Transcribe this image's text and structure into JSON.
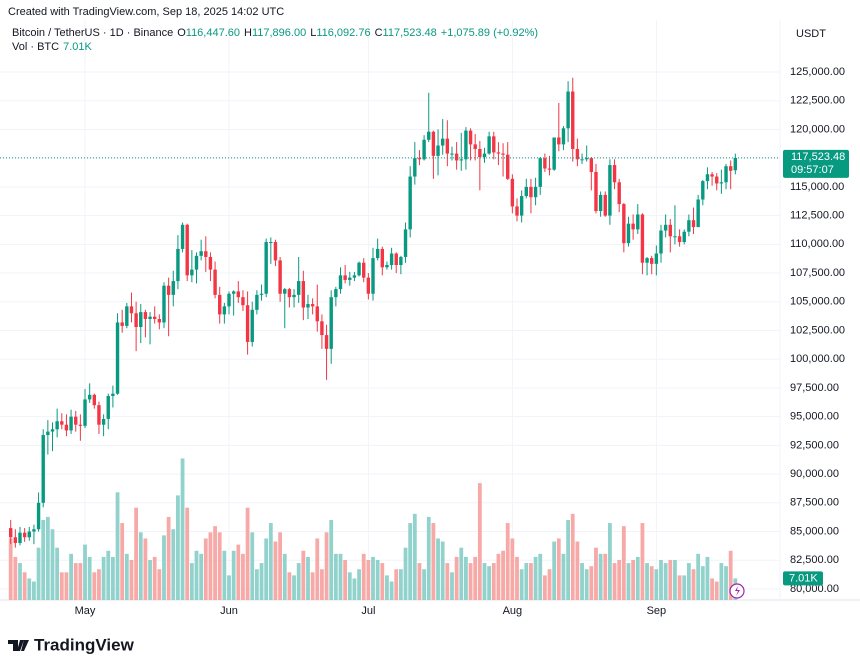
{
  "chart_data": {
    "type": "candlestick",
    "created": "Created with TradingView.com, Sep 18, 2025 14:02 UTC",
    "symbol": "Bitcoin / TetherUS · 1D · Binance",
    "ohlc_prefixes": [
      "O",
      "H",
      "L",
      "C"
    ],
    "ohlc_last_labels": [
      "116,447.60",
      "117,896.00",
      "116,092.76",
      "117,523.48"
    ],
    "change_label": "+1,075.89 (+0.92%)",
    "volume_title": "Vol · BTC",
    "volume_last_label": "7.01K",
    "currency": "USDT",
    "countdown": "09:57:07",
    "brand": "TradingView",
    "up_color": "#089981",
    "down_color": "#f23645",
    "volume_up_color": "#92d2cc",
    "volume_down_color": "#f7a9a7",
    "grid": true,
    "ylim": [
      79040,
      126480
    ],
    "volume_ylim": [
      0,
      52000
    ],
    "yticks": [
      {
        "value": 80000,
        "label": "80,000.00"
      },
      {
        "value": 82500,
        "label": "82,500.00"
      },
      {
        "value": 85000,
        "label": "85,000.00"
      },
      {
        "value": 87500,
        "label": "87,500.00"
      },
      {
        "value": 90000,
        "label": "90,000.00"
      },
      {
        "value": 92500,
        "label": "92,500.00"
      },
      {
        "value": 95000,
        "label": "95,000.00"
      },
      {
        "value": 97500,
        "label": "97,500.00"
      },
      {
        "value": 100000,
        "label": "100,000.00"
      },
      {
        "value": 102500,
        "label": "102,500.00"
      },
      {
        "value": 105000,
        "label": "105,000.00"
      },
      {
        "value": 107500,
        "label": "107,500.00"
      },
      {
        "value": 110000,
        "label": "110,000.00"
      },
      {
        "value": 112500,
        "label": "112,500.00"
      },
      {
        "value": 115000,
        "label": "115,000.00"
      },
      {
        "value": 117500,
        "label": "117,500.00"
      },
      {
        "value": 120000,
        "label": "120,000.00"
      },
      {
        "value": 122500,
        "label": "122,500.00"
      },
      {
        "value": 125000,
        "label": "125,000.00"
      }
    ],
    "categories": [
      null,
      null,
      null,
      null,
      null,
      null,
      null,
      null,
      null,
      null,
      null,
      null,
      null,
      null,
      null,
      null,
      "May",
      null,
      null,
      null,
      null,
      null,
      null,
      null,
      null,
      null,
      null,
      null,
      null,
      null,
      null,
      null,
      null,
      null,
      null,
      null,
      null,
      null,
      null,
      null,
      null,
      null,
      null,
      null,
      null,
      null,
      null,
      "Jun",
      null,
      null,
      null,
      null,
      null,
      null,
      null,
      null,
      null,
      null,
      null,
      null,
      null,
      null,
      null,
      null,
      null,
      null,
      null,
      null,
      null,
      null,
      null,
      null,
      null,
      null,
      null,
      null,
      null,
      "Jul",
      null,
      null,
      null,
      null,
      null,
      null,
      null,
      null,
      null,
      null,
      null,
      null,
      null,
      null,
      null,
      null,
      null,
      null,
      null,
      null,
      null,
      null,
      null,
      null,
      null,
      null,
      null,
      null,
      null,
      null,
      "Aug",
      null,
      null,
      null,
      null,
      null,
      null,
      null,
      null,
      null,
      null,
      null,
      null,
      null,
      null,
      null,
      null,
      null,
      null,
      null,
      null,
      null,
      null,
      null,
      null,
      null,
      null,
      null,
      null,
      null,
      null,
      "Sep",
      null,
      null,
      null,
      null,
      null,
      null,
      null,
      null,
      null,
      null,
      null,
      null,
      null,
      null,
      null,
      null,
      null
    ],
    "ohlc": [
      [
        85300,
        86000,
        83900,
        84500
      ],
      [
        84500,
        85200,
        83600,
        84000
      ],
      [
        84000,
        85400,
        83800,
        84900
      ],
      [
        84900,
        85300,
        84100,
        84500
      ],
      [
        84500,
        85400,
        84200,
        85000
      ],
      [
        85000,
        85600,
        83900,
        85200
      ],
      [
        85200,
        88400,
        85000,
        87500
      ],
      [
        87500,
        93900,
        87100,
        93400
      ],
      [
        93400,
        94700,
        91700,
        93700
      ],
      [
        93700,
        94500,
        92000,
        93900
      ],
      [
        93900,
        95700,
        93200,
        94600
      ],
      [
        94600,
        95300,
        93900,
        94300
      ],
      [
        94300,
        95200,
        93300,
        93800
      ],
      [
        93800,
        95600,
        93500,
        95000
      ],
      [
        95000,
        95500,
        93700,
        94300
      ],
      [
        94300,
        95200,
        92900,
        94200
      ],
      [
        94200,
        97400,
        94000,
        96500
      ],
      [
        96500,
        97900,
        96200,
        96900
      ],
      [
        96900,
        97000,
        95700,
        96000
      ],
      [
        96000,
        96300,
        93500,
        94300
      ],
      [
        94300,
        95200,
        93300,
        94800
      ],
      [
        94800,
        97000,
        93900,
        96800
      ],
      [
        96800,
        97700,
        95800,
        97000
      ],
      [
        97000,
        104000,
        96900,
        103200
      ],
      [
        103200,
        104300,
        102300,
        102900
      ],
      [
        102900,
        104900,
        102700,
        104600
      ],
      [
        104600,
        105800,
        103200,
        104000
      ],
      [
        104000,
        105000,
        100700,
        102800
      ],
      [
        102800,
        104800,
        101400,
        104100
      ],
      [
        104100,
        104300,
        101900,
        103500
      ],
      [
        103500,
        104100,
        101300,
        103700
      ],
      [
        103700,
        104600,
        103100,
        103500
      ],
      [
        103500,
        103900,
        102600,
        103200
      ],
      [
        103200,
        106700,
        102700,
        106400
      ],
      [
        106400,
        107100,
        102000,
        105600
      ],
      [
        105600,
        107700,
        104600,
        106800
      ],
      [
        106800,
        110800,
        106100,
        109600
      ],
      [
        109600,
        111900,
        109300,
        111700
      ],
      [
        111700,
        111800,
        106800,
        107300
      ],
      [
        107300,
        109500,
        106700,
        107800
      ],
      [
        107800,
        109300,
        106600,
        109000
      ],
      [
        109000,
        110400,
        108600,
        109400
      ],
      [
        109400,
        110700,
        107600,
        108900
      ],
      [
        108900,
        109300,
        106800,
        107800
      ],
      [
        107800,
        108500,
        105300,
        105600
      ],
      [
        105600,
        106300,
        103100,
        103900
      ],
      [
        103900,
        104900,
        103100,
        104600
      ],
      [
        104600,
        105900,
        103900,
        105700
      ],
      [
        105700,
        106000,
        103800,
        105900
      ],
      [
        105900,
        106800,
        104900,
        105400
      ],
      [
        105400,
        106000,
        104200,
        104700
      ],
      [
        104700,
        105900,
        100400,
        101500
      ],
      [
        101500,
        105000,
        101100,
        104300
      ],
      [
        104300,
        106000,
        103900,
        105600
      ],
      [
        105600,
        106500,
        105100,
        105700
      ],
      [
        105700,
        110500,
        105400,
        110200
      ],
      [
        110200,
        110600,
        108300,
        110200
      ],
      [
        110200,
        110400,
        108100,
        108600
      ],
      [
        108600,
        108900,
        105000,
        105700
      ],
      [
        105700,
        106200,
        102700,
        106100
      ],
      [
        106100,
        106200,
        104500,
        105400
      ],
      [
        105400,
        106100,
        104500,
        105600
      ],
      [
        105600,
        108900,
        104900,
        106800
      ],
      [
        106800,
        107700,
        103400,
        104500
      ],
      [
        104500,
        105600,
        103500,
        104800
      ],
      [
        104800,
        105300,
        103900,
        104600
      ],
      [
        104600,
        106500,
        102400,
        103300
      ],
      [
        103300,
        103900,
        100900,
        102100
      ],
      [
        102100,
        103000,
        98200,
        100900
      ],
      [
        100900,
        106000,
        99600,
        105400
      ],
      [
        105400,
        106300,
        104600,
        106100
      ],
      [
        106100,
        108000,
        105700,
        107300
      ],
      [
        107300,
        108200,
        106600,
        106900
      ],
      [
        106900,
        107600,
        106400,
        107100
      ],
      [
        107100,
        107600,
        106800,
        107300
      ],
      [
        107300,
        108500,
        107200,
        108400
      ],
      [
        108400,
        108800,
        106700,
        107100
      ],
      [
        107100,
        107500,
        105200,
        105700
      ],
      [
        105700,
        109700,
        105100,
        108800
      ],
      [
        108800,
        110500,
        108600,
        109600
      ],
      [
        109600,
        109800,
        107300,
        108000
      ],
      [
        108000,
        108500,
        107800,
        108200
      ],
      [
        108200,
        109700,
        107800,
        109200
      ],
      [
        109200,
        109300,
        107500,
        108200
      ],
      [
        108200,
        109000,
        107400,
        108900
      ],
      [
        108900,
        111900,
        108400,
        111300
      ],
      [
        111300,
        116800,
        110600,
        115900
      ],
      [
        115900,
        118900,
        115200,
        117500
      ],
      [
        117500,
        118200,
        116900,
        117400
      ],
      [
        117400,
        119500,
        117300,
        119100
      ],
      [
        119100,
        123200,
        118900,
        119800
      ],
      [
        119800,
        119900,
        115700,
        117700
      ],
      [
        117700,
        120000,
        116000,
        118600
      ],
      [
        118600,
        120900,
        117800,
        119200
      ],
      [
        119200,
        120800,
        116800,
        117900
      ],
      [
        117900,
        118500,
        117300,
        117900
      ],
      [
        117900,
        118900,
        116500,
        117300
      ],
      [
        117300,
        119700,
        116400,
        117400
      ],
      [
        117400,
        120200,
        116500,
        119900
      ],
      [
        119900,
        120100,
        117300,
        118700
      ],
      [
        118700,
        119600,
        117300,
        118300
      ],
      [
        118300,
        119000,
        114700,
        117600
      ],
      [
        117600,
        118400,
        117100,
        117900
      ],
      [
        117900,
        119800,
        117800,
        119400
      ],
      [
        119400,
        119800,
        117400,
        118000
      ],
      [
        118000,
        118900,
        116900,
        117900
      ],
      [
        117900,
        118800,
        115900,
        117800
      ],
      [
        117800,
        118900,
        115600,
        115700
      ],
      [
        115700,
        116100,
        112700,
        113300
      ],
      [
        113300,
        114000,
        112000,
        112500
      ],
      [
        112500,
        114700,
        111900,
        114200
      ],
      [
        114200,
        115700,
        114000,
        115000
      ],
      [
        115000,
        115700,
        112700,
        114100
      ],
      [
        114100,
        115800,
        113400,
        115000
      ],
      [
        115000,
        117600,
        114300,
        117500
      ],
      [
        117500,
        117900,
        116300,
        116600
      ],
      [
        116600,
        117700,
        116000,
        116500
      ],
      [
        116500,
        119300,
        116400,
        119300
      ],
      [
        119300,
        122300,
        118100,
        118700
      ],
      [
        118700,
        120300,
        118200,
        120100
      ],
      [
        120100,
        124200,
        118900,
        123300
      ],
      [
        123300,
        124500,
        117200,
        118300
      ],
      [
        118300,
        119200,
        116800,
        117400
      ],
      [
        117400,
        117900,
        117000,
        117400
      ],
      [
        117400,
        118600,
        117200,
        117500
      ],
      [
        117500,
        117600,
        114700,
        116300
      ],
      [
        116300,
        117000,
        112700,
        112900
      ],
      [
        112900,
        114600,
        112400,
        114300
      ],
      [
        114300,
        114600,
        112400,
        112500
      ],
      [
        112500,
        117400,
        111700,
        116900
      ],
      [
        116900,
        117400,
        114800,
        115400
      ],
      [
        115400,
        115700,
        112800,
        113500
      ],
      [
        113500,
        113600,
        109300,
        110100
      ],
      [
        110100,
        112400,
        109800,
        111800
      ],
      [
        111800,
        112600,
        110400,
        111300
      ],
      [
        111300,
        113500,
        110900,
        112600
      ],
      [
        112600,
        112700,
        107400,
        108400
      ],
      [
        108400,
        108900,
        107300,
        108800
      ],
      [
        108800,
        109000,
        107400,
        108300
      ],
      [
        108300,
        109900,
        107300,
        109200
      ],
      [
        109200,
        111700,
        108400,
        111200
      ],
      [
        111200,
        112600,
        110600,
        111700
      ],
      [
        111700,
        112200,
        109300,
        110700
      ],
      [
        110700,
        113400,
        110000,
        110700
      ],
      [
        110700,
        111300,
        109800,
        110200
      ],
      [
        110200,
        111300,
        110000,
        111100
      ],
      [
        111100,
        112600,
        110700,
        112100
      ],
      [
        112100,
        113200,
        110900,
        111500
      ],
      [
        111500,
        114300,
        111500,
        113900
      ],
      [
        113900,
        115600,
        113400,
        115500
      ],
      [
        115500,
        116700,
        114800,
        116100
      ],
      [
        116100,
        116300,
        115100,
        115900
      ],
      [
        115900,
        116200,
        114700,
        115300
      ],
      [
        115300,
        116500,
        114400,
        115400
      ],
      [
        115400,
        117000,
        114800,
        116800
      ],
      [
        116800,
        117300,
        114800,
        116400
      ],
      [
        116447.6,
        117896,
        116092.76,
        117523.48
      ]
    ],
    "volume": [
      20000,
      14000,
      12000,
      9000,
      7000,
      6000,
      17000,
      26000,
      27000,
      23000,
      17000,
      9000,
      9000,
      15000,
      12000,
      12000,
      18000,
      14000,
      9000,
      10000,
      14000,
      16000,
      14000,
      35000,
      25000,
      15000,
      13000,
      30000,
      22000,
      20000,
      13000,
      14000,
      10000,
      21000,
      27000,
      23000,
      34000,
      46000,
      30000,
      12000,
      16000,
      15000,
      20000,
      22000,
      24000,
      22000,
      16000,
      8000,
      16000,
      18000,
      15000,
      30000,
      22000,
      10000,
      12000,
      20000,
      25000,
      19000,
      22000,
      15000,
      9000,
      8000,
      12000,
      16000,
      14000,
      9000,
      20000,
      10000,
      22000,
      26000,
      15000,
      15000,
      13000,
      9000,
      7000,
      10000,
      15000,
      13000,
      14000,
      13000,
      12000,
      8000,
      6000,
      10000,
      10000,
      17000,
      25000,
      28000,
      12000,
      10000,
      27000,
      25000,
      20000,
      19000,
      12000,
      9000,
      14000,
      17000,
      14000,
      12000,
      14000,
      38000,
      12000,
      11000,
      12000,
      15000,
      16000,
      25000,
      20000,
      14000,
      10000,
      12000,
      12000,
      14000,
      15000,
      8000,
      10000,
      19000,
      20000,
      15000,
      26000,
      28000,
      19000,
      12000,
      10000,
      11000,
      17000,
      15000,
      15000,
      25000,
      12000,
      13000,
      24000,
      12000,
      13000,
      14000,
      25000,
      12000,
      11000,
      10000,
      13000,
      12000,
      13000,
      13000,
      8000,
      8000,
      12000,
      10000,
      15000,
      11000,
      14000,
      7000,
      6000,
      12000,
      11000,
      16000,
      7010
    ]
  }
}
